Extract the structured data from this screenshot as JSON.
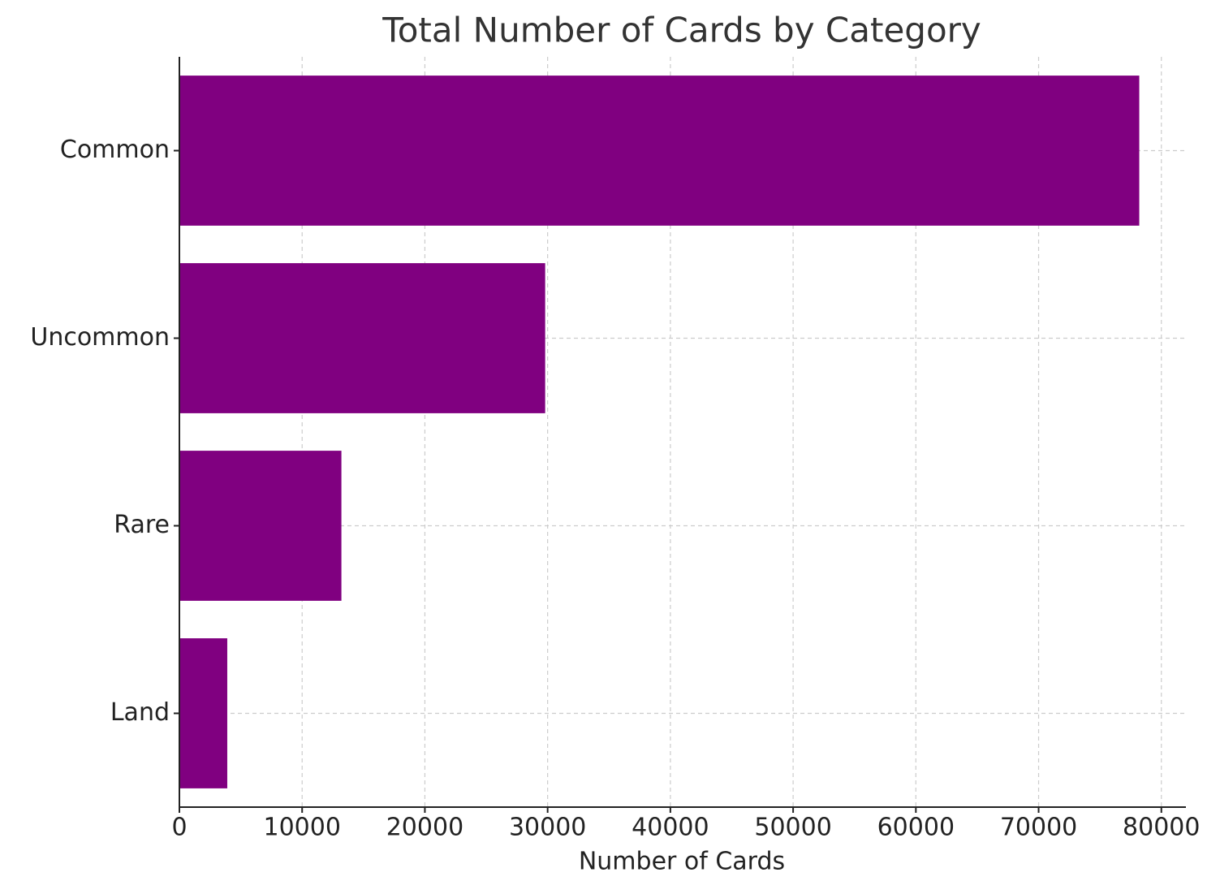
{
  "chart_data": {
    "type": "barh",
    "title": "Total Number of Cards by Category",
    "xlabel": "Number of Cards",
    "categories": [
      "Common",
      "Uncommon",
      "Rare",
      "Land"
    ],
    "values": [
      78200,
      29800,
      13200,
      3900
    ],
    "color": "#800080",
    "xlim": [
      0,
      82000
    ],
    "xticks": [
      0,
      10000,
      20000,
      30000,
      40000,
      50000,
      60000,
      70000,
      80000
    ],
    "grid": true
  }
}
